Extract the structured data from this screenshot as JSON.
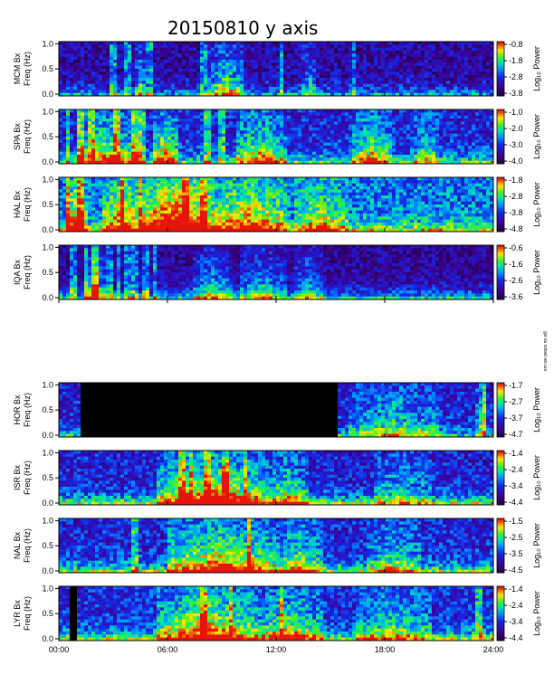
{
  "chart_data": {
    "type": "heatmap",
    "title": "20150810 y axis",
    "x_range_hours": [
      0,
      24
    ],
    "x_ticks": [
      "00:00",
      "06:00",
      "12:00",
      "18:00",
      "24:00"
    ],
    "x_tick_hours": [
      0,
      6,
      12,
      18,
      24
    ],
    "ylim": [
      0,
      1.0
    ],
    "y_ticks": [
      "0.0",
      "0.5",
      "1.0"
    ],
    "y_tick_values": [
      0,
      0.5,
      1.0
    ],
    "ylabel_freq": "Freq (Hz)",
    "colorbar_label": "Log₁₀ Power",
    "side_note": "em we pvocs nn w8",
    "panels": [
      {
        "id": "mcm",
        "label": "MCM Bx",
        "cbar_ticks": [
          "-0.8",
          "-1.8",
          "-2.8",
          "-3.8"
        ],
        "intensity": 0.18,
        "noise": 0.35,
        "low_boost": 0.4,
        "events": [
          [
            8.3,
            10.2,
            0.6
          ],
          [
            4.2,
            4.8,
            0.5
          ],
          [
            13.5,
            14.2,
            0.4
          ]
        ],
        "lines": [
          3.0,
          3.8,
          5.0,
          8.0,
          12.3,
          16.3
        ],
        "black": []
      },
      {
        "id": "spa",
        "label": "SPA Bx",
        "cbar_ticks": [
          "-1.0",
          "-2.0",
          "-3.0",
          "-4.0"
        ],
        "intensity": 0.3,
        "noise": 0.35,
        "low_boost": 0.5,
        "events": [
          [
            1.0,
            4.5,
            0.5
          ],
          [
            5.2,
            6.6,
            0.6
          ],
          [
            9.8,
            12.5,
            0.5
          ],
          [
            16.2,
            18.3,
            0.5
          ],
          [
            19.5,
            21.0,
            0.3
          ]
        ],
        "lines": [
          0.5,
          1.2,
          1.8,
          3.2,
          4.2,
          4.6,
          8.2,
          9.0
        ],
        "black": []
      },
      {
        "id": "hal",
        "label": "HAL Bx",
        "cbar_ticks": [
          "-1.8",
          "-2.8",
          "-3.8",
          "-4.8"
        ],
        "intensity": 0.45,
        "noise": 0.35,
        "low_boost": 0.45,
        "events": [
          [
            0.5,
            1.5,
            0.55
          ],
          [
            2.5,
            4.5,
            0.55
          ],
          [
            4.5,
            8.5,
            0.75
          ],
          [
            8.5,
            12.5,
            0.5
          ],
          [
            13.0,
            16.0,
            0.35
          ]
        ],
        "lines": [
          0.5,
          1.2,
          3.5,
          4.5,
          7.0,
          8.0
        ],
        "black": []
      },
      {
        "id": "iqa",
        "label": "IQA Bx",
        "cbar_ticks": [
          "-0.6",
          "-1.6",
          "-2.6",
          "-3.6"
        ],
        "intensity": 0.16,
        "noise": 0.3,
        "low_boost": 0.55,
        "events": [
          [
            1.5,
            2.5,
            0.55
          ],
          [
            7.5,
            9.5,
            0.45
          ],
          [
            10.0,
            12.5,
            0.4
          ],
          [
            13.0,
            14.5,
            0.35
          ]
        ],
        "lines": [
          0.8,
          1.5,
          2.0,
          2.8,
          3.3,
          3.8,
          4.2,
          4.8,
          5.3
        ],
        "black": []
      },
      {
        "id": "hor",
        "label": "HOR Bx",
        "cbar_ticks": [
          "-1.7",
          "-2.7",
          "-3.7",
          "-4.7"
        ],
        "intensity": 0.28,
        "noise": 0.35,
        "low_boost": 0.4,
        "events": [
          [
            16.0,
            21.0,
            0.35
          ],
          [
            23.0,
            23.7,
            0.4
          ]
        ],
        "lines": [
          23.5
        ],
        "black": [
          [
            1.1,
            15.3
          ]
        ]
      },
      {
        "id": "isr",
        "label": "ISR Bx",
        "cbar_ticks": [
          "-1.4",
          "-2.4",
          "-3.4",
          "-4.4"
        ],
        "intensity": 0.28,
        "noise": 0.35,
        "low_boost": 0.6,
        "events": [
          [
            5.5,
            11.5,
            0.7
          ],
          [
            11.5,
            13.8,
            0.45
          ],
          [
            17.5,
            20.5,
            0.3
          ]
        ],
        "lines": [
          6.8,
          7.3,
          8.2,
          9.2,
          10.3
        ],
        "black": []
      },
      {
        "id": "nal",
        "label": "NAL Bx",
        "cbar_ticks": [
          "-1.5",
          "-2.5",
          "-3.5",
          "-4.5"
        ],
        "intensity": 0.3,
        "noise": 0.35,
        "low_boost": 0.55,
        "events": [
          [
            6.0,
            12.0,
            0.65
          ],
          [
            12.0,
            14.5,
            0.45
          ],
          [
            17.0,
            20.0,
            0.35
          ]
        ],
        "lines": [
          4.2,
          10.5
        ],
        "black": []
      },
      {
        "id": "lyr",
        "label": "LYR Bx",
        "cbar_ticks": [
          "-1.4",
          "-2.4",
          "-3.4",
          "-4.4"
        ],
        "intensity": 0.32,
        "noise": 0.35,
        "low_boost": 0.55,
        "events": [
          [
            5.5,
            11.0,
            0.65
          ],
          [
            11.0,
            14.5,
            0.45
          ],
          [
            16.5,
            20.5,
            0.35
          ]
        ],
        "lines": [
          8.0,
          9.5,
          12.3,
          23.2
        ],
        "black": [
          [
            0.7,
            0.95
          ]
        ]
      }
    ]
  }
}
